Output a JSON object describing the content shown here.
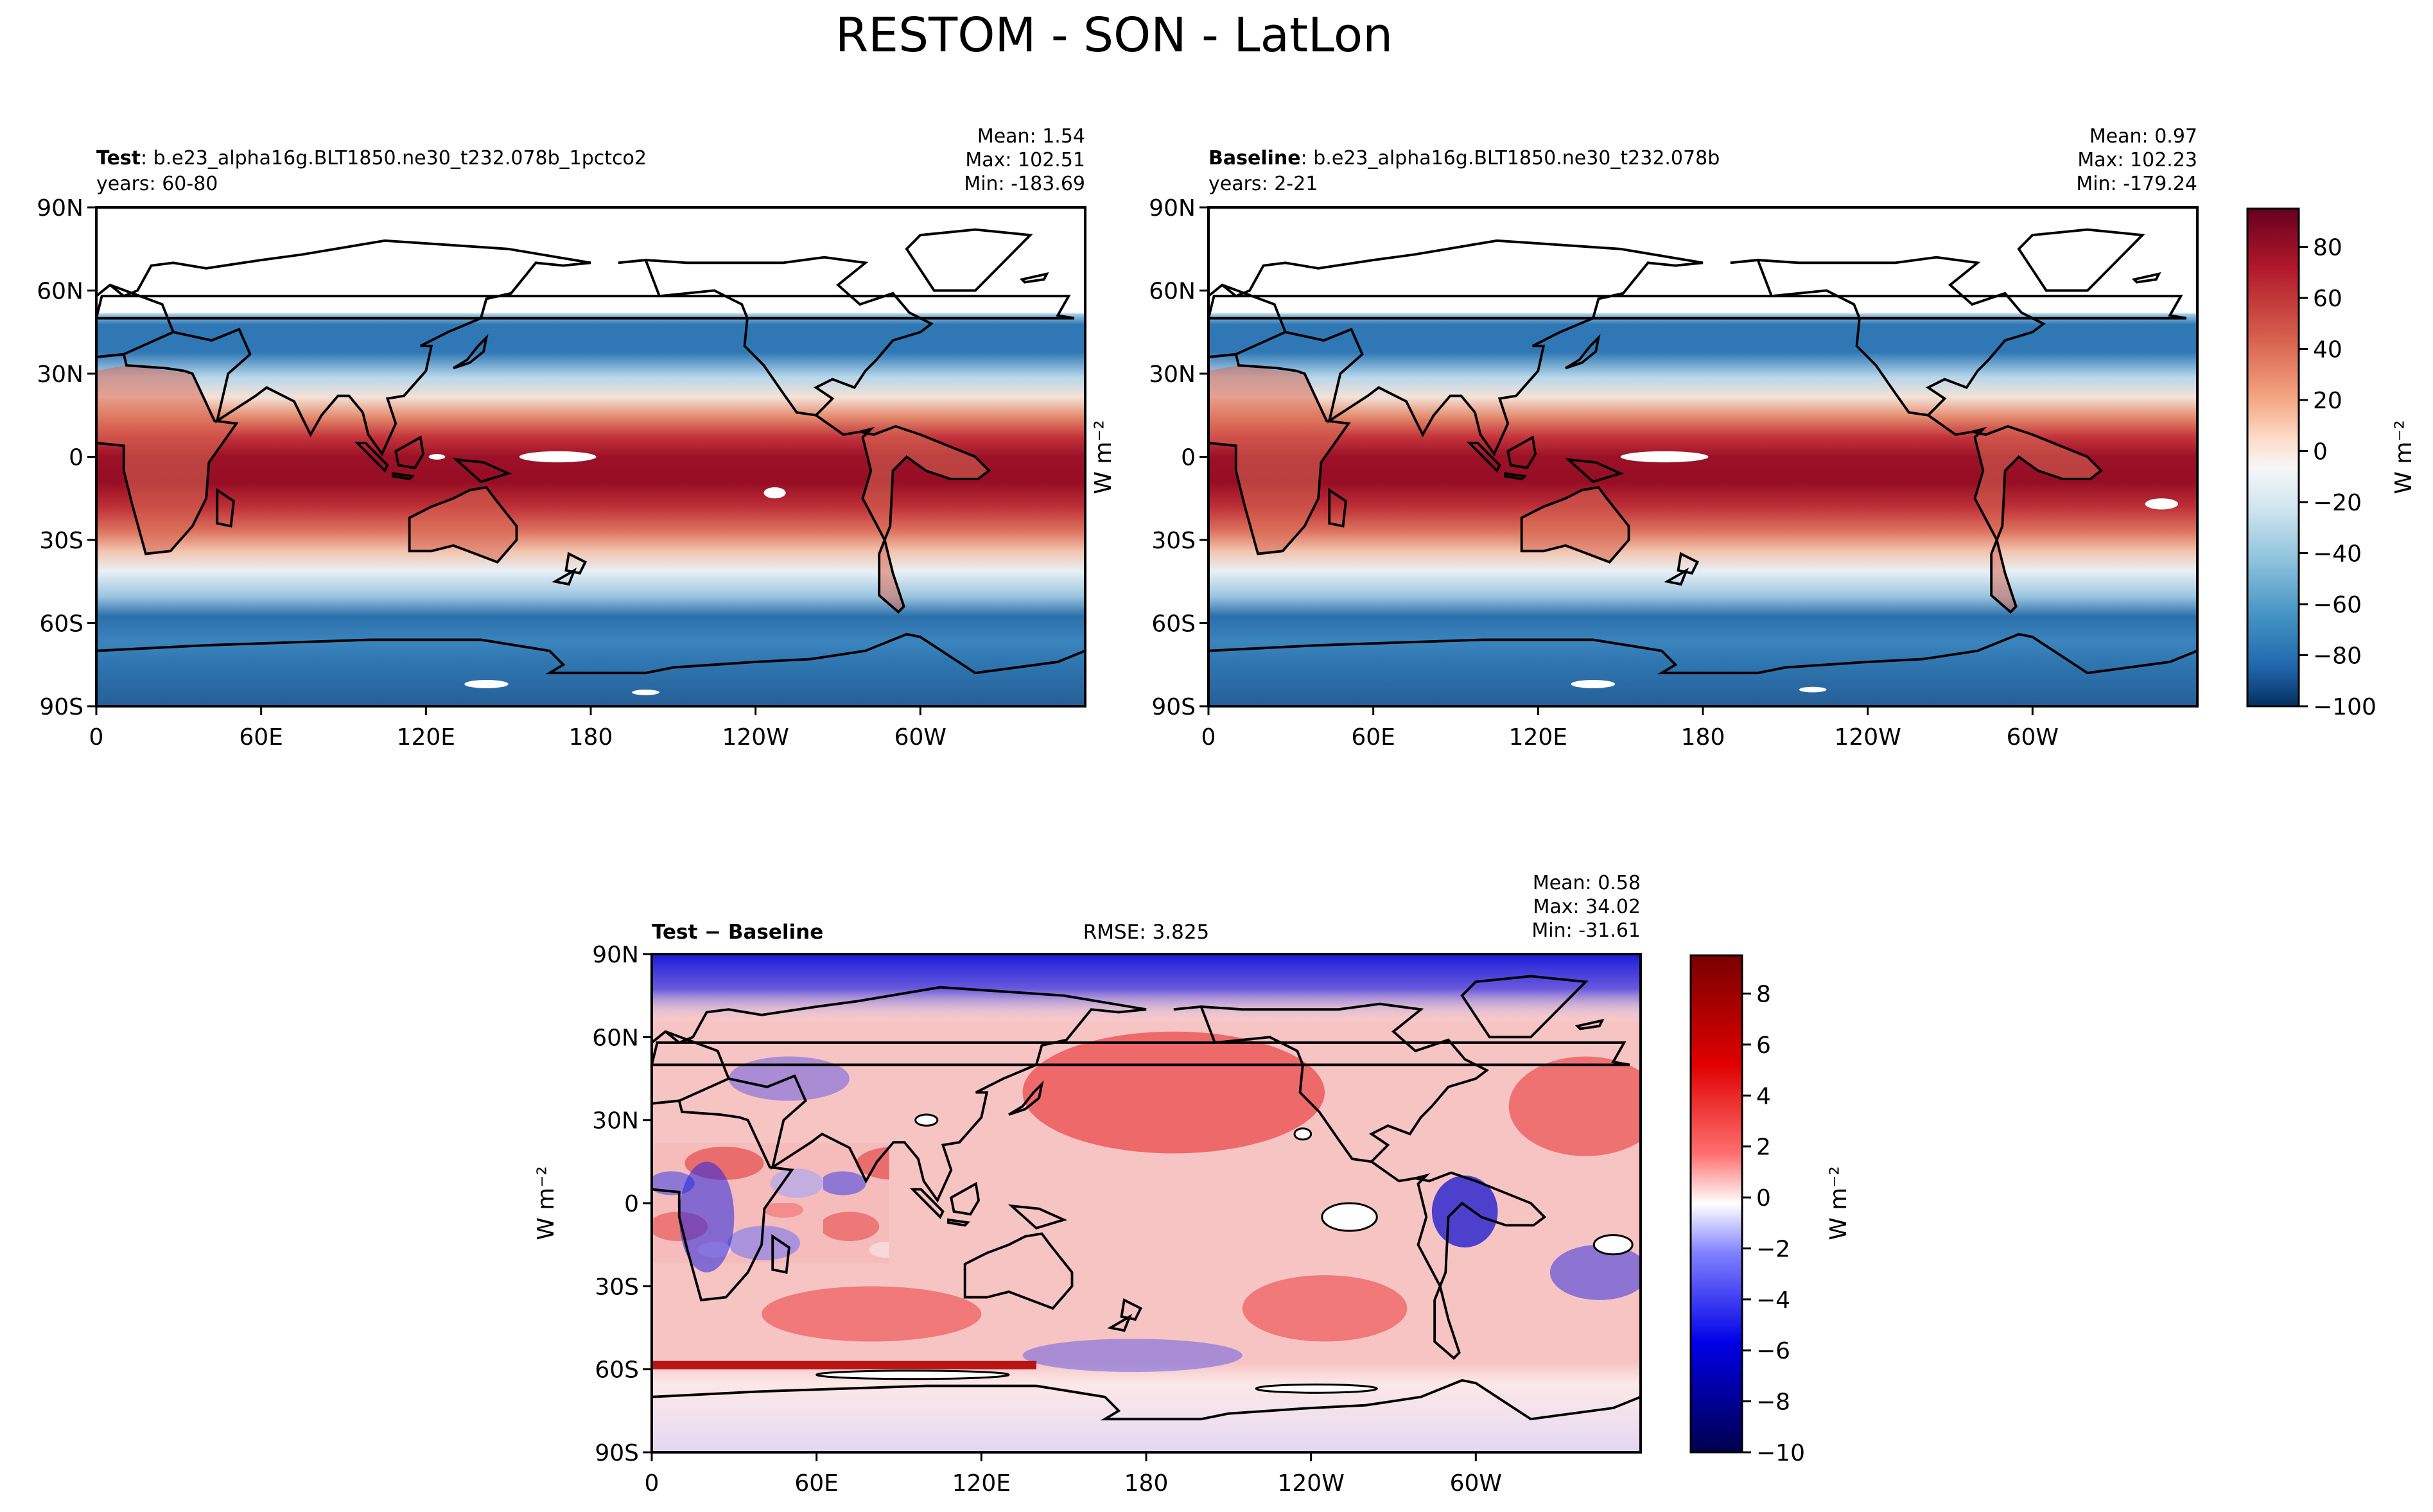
{
  "figure": {
    "title": "RESTOM - SON - LatLon"
  },
  "chart_data": [
    {
      "type": "heatmap",
      "panel": "test",
      "name_label": "Test",
      "case_label": ": b.e23_alpha16g.BLT1850.ne30_t232.078b_1pctco2",
      "years_label": "years: 60-80",
      "stats": {
        "mean": "Mean:  1.54",
        "max": "Max: 102.51",
        "min": "Min: -183.69"
      },
      "x_ticks": [
        "0",
        "60E",
        "120E",
        "180",
        "120W",
        "60W"
      ],
      "y_ticks": [
        "90N",
        "60N",
        "30N",
        "0",
        "30S",
        "60S",
        "90S"
      ],
      "ylabel": "",
      "xlim": [
        0,
        360
      ],
      "ylim": [
        -90,
        90
      ],
      "colormap": "RdBu_r"
    },
    {
      "type": "heatmap",
      "panel": "baseline",
      "name_label": "Baseline",
      "case_label": ": b.e23_alpha16g.BLT1850.ne30_t232.078b",
      "years_label": "years: 2-21",
      "stats": {
        "mean": "Mean:  0.97",
        "max": "Max: 102.23",
        "min": "Min: -179.24"
      },
      "x_ticks": [
        "0",
        "60E",
        "120E",
        "180",
        "120W",
        "60W"
      ],
      "y_ticks": [
        "90N",
        "60N",
        "30N",
        "0",
        "30S",
        "60S",
        "90S"
      ],
      "ylabel": "W m⁻²",
      "xlim": [
        0,
        360
      ],
      "ylim": [
        -90,
        90
      ],
      "colormap": "RdBu_r",
      "colorbar": {
        "ticks": [
          "80",
          "60",
          "40",
          "20",
          "0",
          "−20",
          "−40",
          "−60",
          "−80",
          "−100"
        ],
        "tick_values": [
          80,
          60,
          40,
          20,
          0,
          -20,
          -40,
          -60,
          -80,
          -100
        ],
        "range": [
          -100,
          95
        ],
        "label": "W m⁻²"
      }
    },
    {
      "type": "heatmap",
      "panel": "difference",
      "name_label": "Test − Baseline",
      "rmse": "RMSE: 3.825",
      "stats": {
        "mean": "Mean:  0.58",
        "max": "Max: 34.02",
        "min": "Min: -31.61"
      },
      "x_ticks": [
        "0",
        "60E",
        "120E",
        "180",
        "120W",
        "60W"
      ],
      "y_ticks": [
        "90N",
        "60N",
        "30N",
        "0",
        "30S",
        "60S",
        "90S"
      ],
      "ylabel": "W m⁻²",
      "xlim": [
        0,
        360
      ],
      "ylim": [
        -90,
        90
      ],
      "colormap": "seismic",
      "colorbar": {
        "ticks": [
          "8",
          "6",
          "4",
          "2",
          "0",
          "−2",
          "−4",
          "−6",
          "−8",
          "−10"
        ],
        "tick_values": [
          8,
          6,
          4,
          2,
          0,
          -2,
          -4,
          -6,
          -8,
          -10
        ],
        "range": [
          -10,
          9.5
        ],
        "label": "W m⁻²"
      }
    }
  ]
}
